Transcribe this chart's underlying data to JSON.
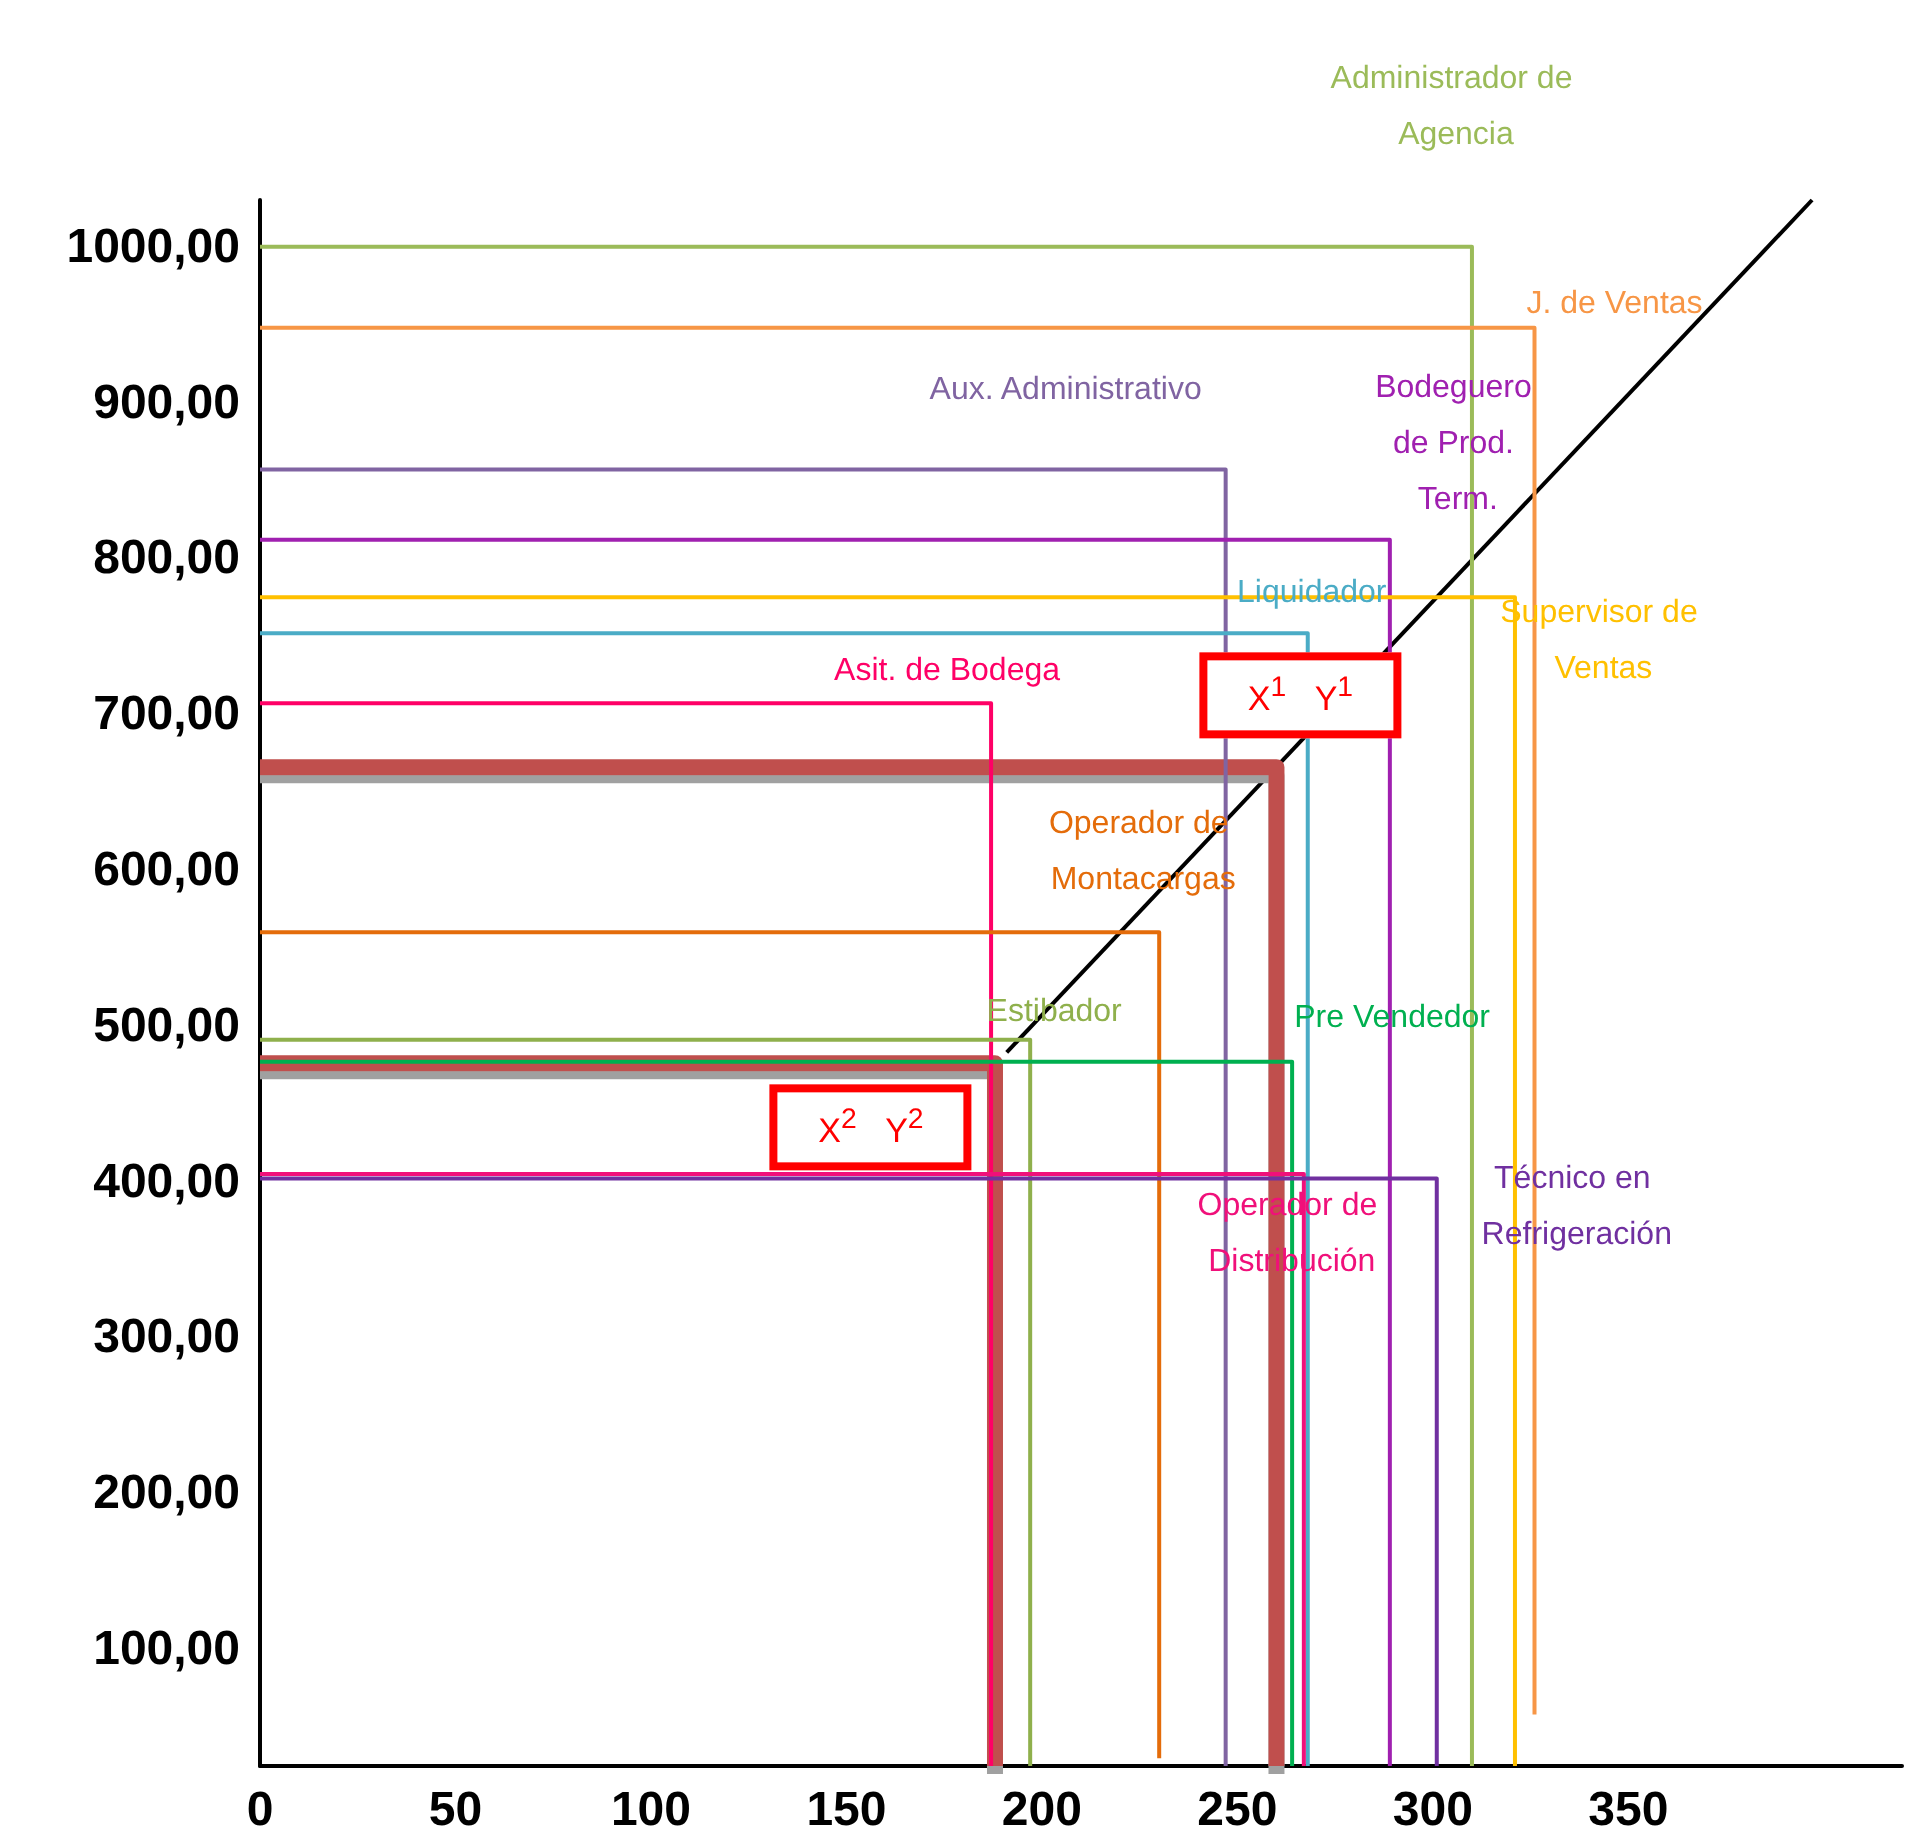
{
  "chart_data": {
    "type": "line",
    "xlim": [
      0,
      420
    ],
    "xticks": [
      0,
      50,
      100,
      150,
      200,
      250,
      300,
      350
    ],
    "ylim": [
      25,
      1030
    ],
    "yticks": [
      {
        "value": 100,
        "label": "100,00"
      },
      {
        "value": 200,
        "label": "200,00"
      },
      {
        "value": 300,
        "label": "300,00"
      },
      {
        "value": 400,
        "label": "400,00"
      },
      {
        "value": 500,
        "label": "500,00"
      },
      {
        "value": 600,
        "label": "600,00"
      },
      {
        "value": 700,
        "label": "700,00"
      },
      {
        "value": 800,
        "label": "800,00"
      },
      {
        "value": 900,
        "label": "900,00"
      },
      {
        "value": 1000,
        "label": "1000,00"
      }
    ],
    "grid": false,
    "legend": false,
    "marker": "none",
    "line_style": "solid",
    "series": [
      {
        "name": "Administrador de Agencia",
        "color": "#9bbb59",
        "x": [
          0,
          310,
          310
        ],
        "values": [
          1000,
          1000,
          25
        ]
      },
      {
        "name": "J. de Ventas",
        "color": "#f79646",
        "x": [
          0,
          326,
          326
        ],
        "values": [
          948,
          948,
          58
        ]
      },
      {
        "name": "Aux. Administrativo",
        "color": "#8064a2",
        "x": [
          0,
          247,
          247
        ],
        "values": [
          857,
          857,
          25
        ]
      },
      {
        "name": "Bodeguero de Prod. Term.",
        "color": "#a020b0",
        "x": [
          0,
          289,
          289
        ],
        "values": [
          812,
          812,
          25
        ]
      },
      {
        "name": "Supervisor de Ventas",
        "color": "#ffc000",
        "x": [
          0,
          321,
          321
        ],
        "values": [
          775,
          775,
          25
        ]
      },
      {
        "name": "Liquidador",
        "color": "#4bacc6",
        "x": [
          0,
          268,
          268
        ],
        "values": [
          752,
          752,
          25
        ]
      },
      {
        "name": "Asit. de Bodega",
        "color": "#ff0066",
        "x": [
          0,
          187,
          187
        ],
        "values": [
          707,
          707,
          25
        ]
      },
      {
        "name": "Operador de Montacargas",
        "color": "#e46c0a",
        "x": [
          0,
          230,
          230
        ],
        "values": [
          560,
          560,
          30
        ]
      },
      {
        "name": "Estibador",
        "color": "#8fb04c",
        "x": [
          0,
          197,
          197
        ],
        "values": [
          491,
          491,
          25
        ]
      },
      {
        "name": "Pre Vendedor",
        "color": "#00b050",
        "x": [
          0,
          264,
          264
        ],
        "values": [
          477,
          477,
          25
        ]
      },
      {
        "name": "Operador de Distribución",
        "color": "#f0107a",
        "x": [
          0,
          267,
          267
        ],
        "values": [
          405,
          405,
          25
        ]
      },
      {
        "name": "Técnico en Refrigeración",
        "color": "#7030a0",
        "x": [
          0,
          301,
          301
        ],
        "values": [
          402,
          402,
          25
        ]
      },
      {
        "color": "#c0504d",
        "x": [
          0,
          260,
          260
        ],
        "values": [
          666,
          666,
          25
        ]
      },
      {
        "color": "#c0504d",
        "x": [
          0,
          188,
          188
        ],
        "values": [
          476,
          476,
          25
        ]
      },
      {
        "color": "#000000",
        "x": [
          191,
          397
        ],
        "values": [
          483,
          1030
        ]
      }
    ],
    "annotations": [
      {
        "text": "X$^{1}$ Y$^{1}$",
        "x": 260,
        "y": 666
      },
      {
        "text": "X$^{2}$ Y$^{2}$",
        "x": 188,
        "y": 476
      }
    ]
  }
}
